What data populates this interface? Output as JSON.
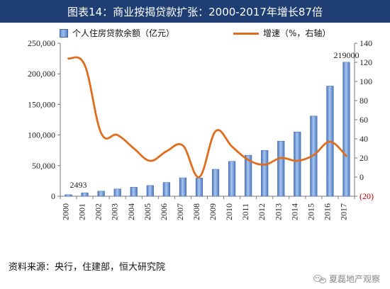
{
  "header": {
    "title": "图表14：商业按揭贷款扩张：2000-2017年增长87倍"
  },
  "legend": {
    "bar_label": "个人住房贷款余额（亿元）",
    "line_label": "增速（%，右轴）"
  },
  "footer": {
    "source": "资料来源：央行，住建部，恒大研究院",
    "watermark": "夏磊地产观察"
  },
  "colors": {
    "header": "#1f3f74",
    "bar": "#5b84c7",
    "line": "#de6d1f",
    "axis": "#7a7a7a",
    "negative_label": "#c00000"
  },
  "chart_data": {
    "type": "bar",
    "categories": [
      "2000",
      "2001",
      "2002",
      "2003",
      "2004",
      "2005",
      "2006",
      "2007",
      "2008",
      "2009",
      "2010",
      "2011",
      "2012",
      "2013",
      "2014",
      "2015",
      "2016",
      "2017"
    ],
    "series": [
      {
        "name": "个人住房贷款余额（亿元）",
        "type": "bar",
        "values": [
          2493,
          5600,
          8300,
          11800,
          14800,
          17500,
          22500,
          30000,
          29800,
          44000,
          57000,
          67000,
          75000,
          90000,
          105000,
          131000,
          180000,
          219000
        ]
      },
      {
        "name": "增速（%，右轴）",
        "type": "line",
        "axis": "right",
        "values": [
          124,
          117,
          46,
          44,
          30,
          17,
          27,
          33,
          0,
          48,
          32,
          18,
          13,
          20,
          17,
          23,
          37,
          22
        ]
      }
    ],
    "left_axis": {
      "ylim": [
        0,
        250000
      ],
      "ticks": [
        0,
        50000,
        100000,
        150000,
        200000,
        250000
      ],
      "tick_labels": [
        "0",
        "50,000",
        "100,000",
        "150,000",
        "200,000",
        "250,000"
      ]
    },
    "right_axis": {
      "ylim": [
        -20,
        140
      ],
      "ticks": [
        -20,
        0,
        20,
        40,
        60,
        80,
        100,
        120,
        140
      ],
      "tick_labels": [
        "(20)",
        "0",
        "20",
        "40",
        "60",
        "80",
        "100",
        "120",
        "140"
      ]
    },
    "annotations": [
      {
        "label": "2493",
        "category": "2000"
      },
      {
        "label": "219000",
        "category": "2017"
      }
    ],
    "legend_position": "top",
    "grid": false
  }
}
